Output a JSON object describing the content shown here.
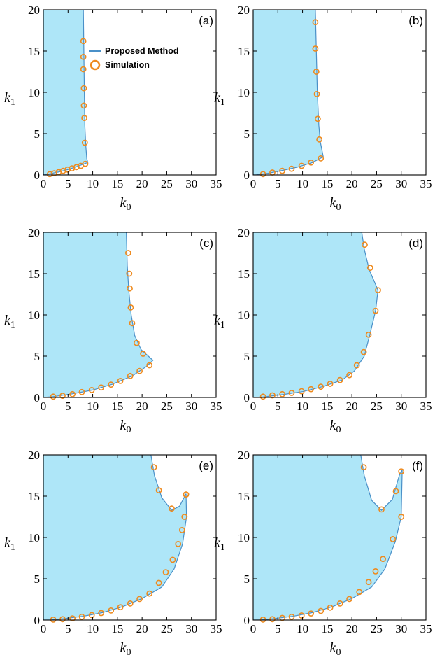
{
  "colors": {
    "fill": "#aee6f8",
    "line": "#4a90c8",
    "marker": "#ee8a1e",
    "frame": "#000000"
  },
  "legend": {
    "line_label": "Proposed Method",
    "marker_label": "Simulation"
  },
  "chart_data": [
    {
      "type": "area",
      "panel": "(a)",
      "xlabel": "k0",
      "ylabel": "k1",
      "xlim": [
        0,
        35
      ],
      "ylim": [
        0,
        20
      ],
      "xticks": [
        0,
        5,
        10,
        15,
        20,
        25,
        30,
        35
      ],
      "yticks": [
        0,
        5,
        10,
        15,
        20
      ],
      "legend_position": "top-right",
      "series": [
        {
          "name": "Proposed Method",
          "boundary": [
            [
              8.1,
              20
            ],
            [
              8.2,
              15
            ],
            [
              8.3,
              10
            ],
            [
              8.4,
              6
            ],
            [
              8.6,
              3.5
            ],
            [
              8.8,
              2
            ],
            [
              9.0,
              1.5
            ],
            [
              7,
              1.05
            ],
            [
              5,
              0.65
            ],
            [
              3,
              0.35
            ],
            [
              1,
              0.1
            ],
            [
              0,
              0
            ]
          ]
        },
        {
          "name": "Simulation",
          "x": [
            1.3,
            2.2,
            3.1,
            4.0,
            4.9,
            5.8,
            6.7,
            7.6,
            8.5,
            8.1,
            8.1,
            8.1,
            8.2,
            8.2,
            8.3,
            8.4
          ],
          "y": [
            0.1,
            0.2,
            0.35,
            0.5,
            0.65,
            0.8,
            0.95,
            1.1,
            1.35,
            16.2,
            14.3,
            12.8,
            10.5,
            8.4,
            6.9,
            3.9
          ]
        }
      ]
    },
    {
      "type": "area",
      "panel": "(b)",
      "xlabel": "k0",
      "ylabel": "k1",
      "xlim": [
        0,
        35
      ],
      "ylim": [
        0,
        20
      ],
      "xticks": [
        0,
        5,
        10,
        15,
        20,
        25,
        30,
        35
      ],
      "yticks": [
        0,
        5,
        10,
        15,
        20
      ],
      "series": [
        {
          "name": "Proposed Method",
          "boundary": [
            [
              12.6,
              20
            ],
            [
              12.8,
              15
            ],
            [
              13.0,
              10
            ],
            [
              13.3,
              6
            ],
            [
              13.6,
              4
            ],
            [
              14.2,
              2.2
            ],
            [
              12,
              1.5
            ],
            [
              9,
              0.95
            ],
            [
              6,
              0.55
            ],
            [
              3,
              0.2
            ],
            [
              0.5,
              0
            ],
            [
              0,
              0
            ]
          ]
        },
        {
          "name": "Simulation",
          "x": [
            2.0,
            3.9,
            5.9,
            7.8,
            9.8,
            11.7,
            13.7,
            13.4,
            13.1,
            12.9,
            12.8,
            12.6
          ],
          "y": [
            0.1,
            0.3,
            0.5,
            0.75,
            1.1,
            1.5,
            2.0,
            4.3,
            6.8,
            9.8,
            12.5,
            15.3
          ]
        },
        {
          "name": "Simulation",
          "x": [
            12.6
          ],
          "y": [
            18.5
          ]
        }
      ]
    },
    {
      "type": "area",
      "panel": "(c)",
      "xlabel": "k0",
      "ylabel": "k1",
      "xlim": [
        0,
        35
      ],
      "ylim": [
        0,
        20
      ],
      "xticks": [
        0,
        5,
        10,
        15,
        20,
        25,
        30,
        35
      ],
      "yticks": [
        0,
        5,
        10,
        15,
        20
      ],
      "series": [
        {
          "name": "Proposed Method",
          "boundary": [
            [
              16.8,
              20
            ],
            [
              17.0,
              16
            ],
            [
              17.3,
              13
            ],
            [
              17.8,
              10
            ],
            [
              18.5,
              7.5
            ],
            [
              19.8,
              5.8
            ],
            [
              22.2,
              4.5
            ],
            [
              21.0,
              3.8
            ],
            [
              18,
              2.6
            ],
            [
              14,
              1.6
            ],
            [
              10,
              0.9
            ],
            [
              6,
              0.45
            ],
            [
              2,
              0.1
            ],
            [
              0,
              0
            ]
          ]
        },
        {
          "name": "Simulation",
          "x": [
            2.0,
            3.9,
            5.9,
            7.8,
            9.8,
            11.7,
            13.7,
            15.6,
            17.6,
            19.5,
            21.5,
            20.2,
            18.9,
            18.0,
            17.7,
            17.5,
            17.4,
            17.2
          ],
          "y": [
            0.1,
            0.2,
            0.4,
            0.65,
            0.9,
            1.2,
            1.55,
            2.0,
            2.6,
            3.2,
            3.9,
            5.3,
            6.6,
            9.0,
            10.9,
            13.2,
            15.0,
            17.5
          ]
        }
      ]
    },
    {
      "type": "area",
      "panel": "(d)",
      "xlabel": "k0",
      "ylabel": "k1",
      "xlim": [
        0,
        35
      ],
      "ylim": [
        0,
        20
      ],
      "xticks": [
        0,
        5,
        10,
        15,
        20,
        25,
        30,
        35
      ],
      "yticks": [
        0,
        5,
        10,
        15,
        20
      ],
      "series": [
        {
          "name": "Proposed Method",
          "boundary": [
            [
              22.0,
              20
            ],
            [
              22.5,
              18
            ],
            [
              23.5,
              15.5
            ],
            [
              25.3,
              13.0
            ],
            [
              24.8,
              10.5
            ],
            [
              23.6,
              7.5
            ],
            [
              22.5,
              5.0
            ],
            [
              20.5,
              3.2
            ],
            [
              18,
              2.1
            ],
            [
              14,
              1.3
            ],
            [
              10,
              0.7
            ],
            [
              6,
              0.35
            ],
            [
              2,
              0.05
            ],
            [
              0,
              0
            ]
          ]
        },
        {
          "name": "Simulation",
          "x": [
            2.0,
            3.9,
            5.9,
            7.8,
            9.8,
            11.7,
            13.7,
            15.6,
            17.6,
            19.5,
            21.0,
            22.4,
            23.4,
            24.8,
            25.3,
            23.7,
            22.6
          ],
          "y": [
            0.1,
            0.25,
            0.4,
            0.55,
            0.75,
            1.0,
            1.3,
            1.65,
            2.1,
            2.7,
            3.9,
            5.5,
            7.6,
            10.5,
            13.0,
            15.7,
            18.5
          ]
        }
      ]
    },
    {
      "type": "area",
      "panel": "(e)",
      "xlabel": "k0",
      "ylabel": "k1",
      "xlim": [
        0,
        35
      ],
      "ylim": [
        0,
        20
      ],
      "xticks": [
        0,
        5,
        10,
        15,
        20,
        25,
        30,
        35
      ],
      "yticks": [
        0,
        5,
        10,
        15,
        20
      ],
      "series": [
        {
          "name": "Proposed Method",
          "boundary": [
            [
              21.8,
              20
            ],
            [
              22.5,
              17.5
            ],
            [
              24,
              14.8
            ],
            [
              26,
              13.3
            ],
            [
              27.6,
              13.8
            ],
            [
              28.9,
              15.3
            ],
            [
              29.0,
              12.5
            ],
            [
              28.2,
              9.2
            ],
            [
              26.5,
              6.2
            ],
            [
              24,
              4
            ],
            [
              20,
              2.6
            ],
            [
              16,
              1.6
            ],
            [
              12,
              0.9
            ],
            [
              8,
              0.45
            ],
            [
              4,
              0.15
            ],
            [
              1.5,
              0
            ],
            [
              0,
              0
            ]
          ]
        },
        {
          "name": "Simulation",
          "x": [
            2.0,
            3.9,
            5.9,
            7.8,
            9.8,
            11.7,
            13.7,
            15.6,
            17.6,
            19.5,
            21.5,
            23.4,
            24.8,
            26.2,
            27.3,
            28.1,
            28.6,
            28.9,
            28.9,
            26.0,
            23.4,
            22.4
          ],
          "y": [
            0.05,
            0.1,
            0.2,
            0.4,
            0.6,
            0.85,
            1.15,
            1.55,
            2.0,
            2.55,
            3.2,
            4.5,
            5.8,
            7.3,
            9.2,
            10.9,
            12.5,
            15.2,
            15.2,
            13.5,
            15.7,
            18.5
          ]
        }
      ]
    },
    {
      "type": "area",
      "panel": "(f)",
      "xlabel": "k0",
      "ylabel": "k1",
      "xlim": [
        0,
        35
      ],
      "ylim": [
        0,
        20
      ],
      "xticks": [
        0,
        5,
        10,
        15,
        20,
        25,
        30,
        35
      ],
      "yticks": [
        0,
        5,
        10,
        15,
        20
      ],
      "series": [
        {
          "name": "Proposed Method",
          "boundary": [
            [
              21.8,
              20
            ],
            [
              22.5,
              17.5
            ],
            [
              24,
              14.5
            ],
            [
              26,
              13.3
            ],
            [
              28.2,
              14.6
            ],
            [
              29.6,
              17.5
            ],
            [
              30.2,
              18.2
            ],
            [
              30.0,
              12.5
            ],
            [
              28.8,
              9.5
            ],
            [
              26.7,
              6.2
            ],
            [
              24,
              4
            ],
            [
              20,
              2.6
            ],
            [
              16,
              1.6
            ],
            [
              12,
              0.9
            ],
            [
              8,
              0.45
            ],
            [
              4,
              0.15
            ],
            [
              1.5,
              0
            ],
            [
              0,
              0
            ]
          ]
        },
        {
          "name": "Simulation",
          "x": [
            2.0,
            3.9,
            5.9,
            7.8,
            9.8,
            11.7,
            13.7,
            15.6,
            17.6,
            19.5,
            21.5,
            23.4,
            24.8,
            26.3,
            28.3,
            30.0,
            30.0,
            28.9,
            26.0,
            22.4
          ],
          "y": [
            0.05,
            0.1,
            0.25,
            0.4,
            0.55,
            0.8,
            1.1,
            1.5,
            2.0,
            2.55,
            3.4,
            4.6,
            5.9,
            7.4,
            9.8,
            12.5,
            18.0,
            15.6,
            13.4,
            18.5
          ]
        }
      ]
    }
  ]
}
